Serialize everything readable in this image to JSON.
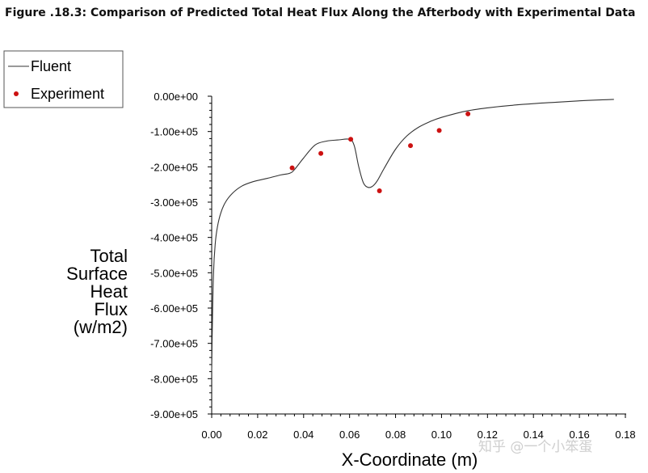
{
  "figure_caption": "Figure .18.3: Comparison of Predicted Total Heat Flux Along the Afterbody with Experimental Data",
  "watermark": "知乎 @一个小笨蛋",
  "chart_data": {
    "type": "line",
    "title": "",
    "xlabel": "X-Coordinate (m)",
    "ylabel_lines": [
      "Total",
      "Surface",
      "Heat",
      "Flux",
      "(w/m2)"
    ],
    "xlim": [
      0,
      0.18
    ],
    "ylim": [
      -900000,
      0
    ],
    "x_ticks": [
      0,
      0.02,
      0.04,
      0.06,
      0.08,
      0.1,
      0.12,
      0.14,
      0.16,
      0.18
    ],
    "x_tick_labels": [
      "0.00",
      "0.02",
      "0.04",
      "0.06",
      "0.08",
      "0.10",
      "0.12",
      "0.14",
      "0.16",
      "0.18"
    ],
    "y_ticks": [
      0,
      -100000,
      -200000,
      -300000,
      -400000,
      -500000,
      -600000,
      -700000,
      -800000,
      -900000
    ],
    "y_tick_labels": [
      "0.00e+00",
      "-1.00e+05",
      "-2.00e+05",
      "-3.00e+05",
      "-4.00e+05",
      "-5.00e+05",
      "-6.00e+05",
      "-7.00e+05",
      "-8.00e+05",
      "-9.00e+05"
    ],
    "legend": {
      "position": "top-left",
      "entries": [
        {
          "label": "Fluent",
          "marker": "line",
          "color": "#333333"
        },
        {
          "label": "Experiment",
          "marker": "dot",
          "color": "#cc1111"
        }
      ]
    },
    "series": [
      {
        "name": "Fluent",
        "color": "#333333",
        "x": [
          0.0,
          0.0003,
          0.0008,
          0.0015,
          0.0025,
          0.004,
          0.006,
          0.009,
          0.013,
          0.018,
          0.024,
          0.03,
          0.034,
          0.036,
          0.04,
          0.045,
          0.05,
          0.055,
          0.06,
          0.062,
          0.064,
          0.066,
          0.068,
          0.07,
          0.072,
          0.075,
          0.08,
          0.085,
          0.09,
          0.095,
          0.1,
          0.11,
          0.12,
          0.13,
          0.14,
          0.15,
          0.16,
          0.17,
          0.175
        ],
        "y": [
          -780000,
          -640000,
          -500000,
          -420000,
          -370000,
          -330000,
          -300000,
          -275000,
          -255000,
          -242000,
          -233000,
          -223000,
          -218000,
          -208000,
          -175000,
          -138000,
          -127000,
          -124000,
          -122000,
          -140000,
          -200000,
          -245000,
          -258000,
          -255000,
          -240000,
          -205000,
          -150000,
          -112000,
          -88000,
          -72000,
          -60000,
          -43000,
          -33000,
          -26000,
          -21000,
          -17000,
          -13000,
          -10000,
          -9000
        ]
      }
    ],
    "points": [
      {
        "name": "Experiment",
        "color": "#cc1111",
        "x": [
          0.035,
          0.0475,
          0.0605,
          0.073,
          0.0865,
          0.099,
          0.1115
        ],
        "y": [
          -203000,
          -162000,
          -122000,
          -268000,
          -140000,
          -97000,
          -50000
        ]
      }
    ]
  }
}
